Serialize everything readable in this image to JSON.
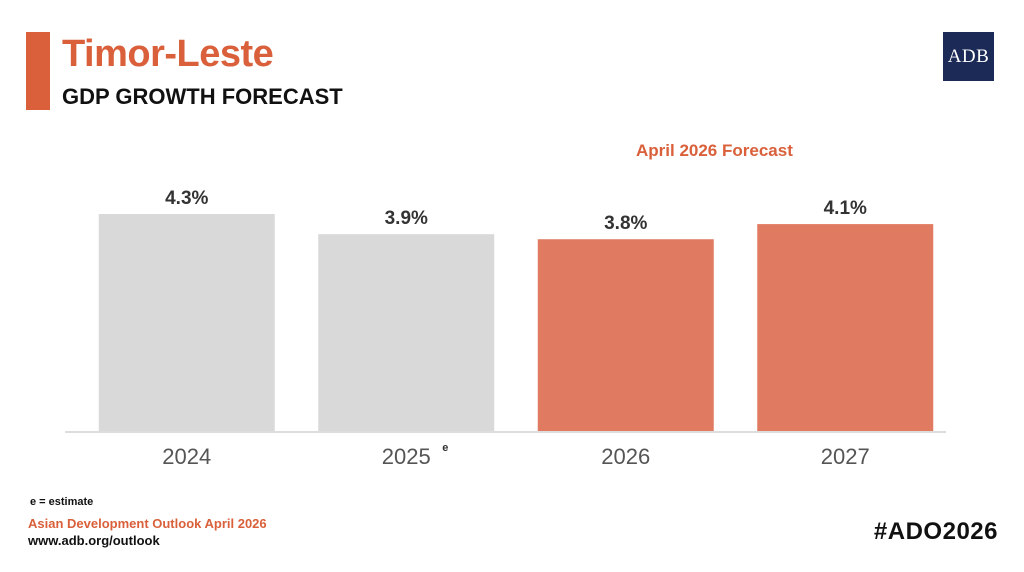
{
  "header": {
    "title": "Timor-Leste",
    "subtitle": "GDP GROWTH FORECAST",
    "logo_text": "ADB"
  },
  "forecast_label": "April 2026 Forecast",
  "footer": {
    "note": "e = estimate",
    "source": "Asian Development Outlook April 2026",
    "url": "www.adb.org/outlook",
    "hashtag": "#ADO2026"
  },
  "colors": {
    "accent": "#d9603a",
    "forecast_bar": "#e07a60",
    "historical_bar": "#d9d9d9",
    "logo_bg": "#1b2a56"
  },
  "chart_data": {
    "type": "bar",
    "title": "GDP GROWTH FORECAST",
    "xlabel": "",
    "ylabel": "",
    "categories": [
      "2024",
      "2025",
      "2026",
      "2027"
    ],
    "superscripts": [
      "",
      "e",
      "",
      ""
    ],
    "values": [
      4.3,
      3.9,
      3.8,
      4.1
    ],
    "data_labels": [
      "4.3%",
      "3.9%",
      "3.8%",
      "4.1%"
    ],
    "forecast": [
      false,
      false,
      true,
      true
    ],
    "ylim": [
      0,
      4.3
    ],
    "grid": false
  }
}
